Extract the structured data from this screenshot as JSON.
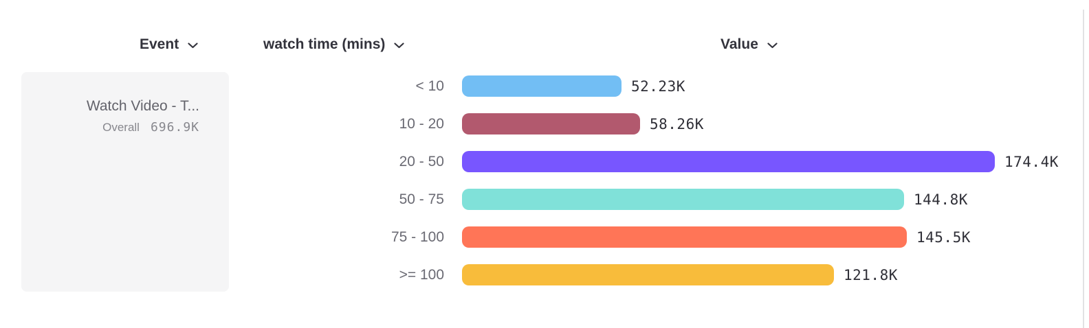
{
  "header": {
    "columns": [
      {
        "label": "Event"
      },
      {
        "label": "watch time (mins)"
      },
      {
        "label": "Value"
      }
    ]
  },
  "legend": {
    "event_name": "Watch Video - T...",
    "overall_label": "Overall",
    "overall_value": "696.9K"
  },
  "chart_data": {
    "type": "bar",
    "orientation": "horizontal",
    "title": "",
    "xlabel": "Value",
    "ylabel": "watch time (mins)",
    "categories": [
      "< 10",
      "10 - 20",
      "20 - 50",
      "50 - 75",
      "75 - 100",
      ">= 100"
    ],
    "values": [
      52230,
      58260,
      174400,
      144800,
      145500,
      121800
    ],
    "value_labels": [
      "52.23K",
      "58.26K",
      "174.4K",
      "144.8K",
      "145.5K",
      "121.8K"
    ],
    "bar_colors": [
      "#72BEF4",
      "#B2596E",
      "#7856FF",
      "#80E1D9",
      "#FF7557",
      "#F8BC3B"
    ],
    "series_event": "Watch Video - T...",
    "overall_total": "696.9K",
    "xlim": [
      0,
      174400
    ],
    "grid": false,
    "legend_position": "left"
  },
  "layout_colors": {
    "card_background": "#f5f5f6",
    "divider": "#e2e2e4",
    "header_text": "#33333c",
    "category_text": "#6a6a73",
    "value_text": "#2f2f37",
    "muted_text": "#87878d"
  }
}
